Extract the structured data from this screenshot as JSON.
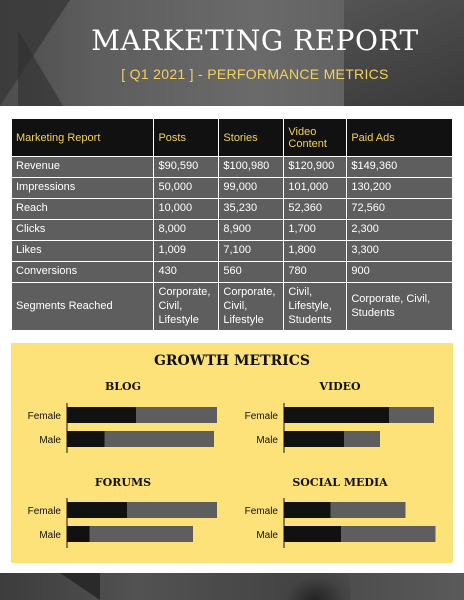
{
  "header": {
    "title": "MARKETING REPORT",
    "subtitle": "[ Q1 2021 ] - PERFORMANCE METRICS"
  },
  "table": {
    "columns": [
      "Marketing Report",
      "Posts",
      "Stories",
      "Video\nContent",
      "Paid Ads"
    ],
    "rows": [
      [
        "Revenue",
        "$90,590",
        "$100,980",
        "$120,900",
        "$149,360"
      ],
      [
        "Impressions",
        "50,000",
        "99,000",
        "101,000",
        "130,200"
      ],
      [
        "Reach",
        "10,000",
        "35,230",
        "52,360",
        "72,560"
      ],
      [
        "Clicks",
        "8,000",
        "8,900",
        "1,700",
        "2,300"
      ],
      [
        "Likes",
        "1,009",
        "7,100",
        "1,800",
        "3,300"
      ],
      [
        "Conversions",
        "430",
        "560",
        "780",
        "900"
      ],
      [
        "Segments Reached",
        "Corporate,\nCivil,\nLifestyle",
        "Corporate,\nCivil,\nLifestyle",
        "Civil,\nLifestyle,\nStudents",
        "Corporate, Civil,\nStudents"
      ]
    ]
  },
  "growth": {
    "title": "GROWTH METRICS",
    "colors": {
      "filled": "#111111",
      "remaining": "#5e5e5e",
      "axis": "#111111"
    }
  },
  "chart_data": [
    {
      "type": "bar",
      "title": "BLOG",
      "categories": [
        "Female",
        "Male"
      ],
      "series": [
        {
          "values": [
            46,
            25
          ]
        },
        {
          "values": [
            54,
            73
          ]
        }
      ]
    },
    {
      "type": "bar",
      "title": "VIDEO",
      "categories": [
        "Female",
        "Male"
      ],
      "series": [
        {
          "values": [
            70,
            40
          ]
        },
        {
          "values": [
            30,
            24
          ]
        }
      ]
    },
    {
      "type": "bar",
      "title": "FORUMS",
      "categories": [
        "Female",
        "Male"
      ],
      "series": [
        {
          "values": [
            40,
            15
          ]
        },
        {
          "values": [
            60,
            69
          ]
        }
      ]
    },
    {
      "type": "bar",
      "title": "SOCIAL MEDIA",
      "categories": [
        "Female",
        "Male"
      ],
      "series": [
        {
          "values": [
            31,
            38
          ]
        },
        {
          "values": [
            50,
            63
          ]
        }
      ]
    }
  ]
}
